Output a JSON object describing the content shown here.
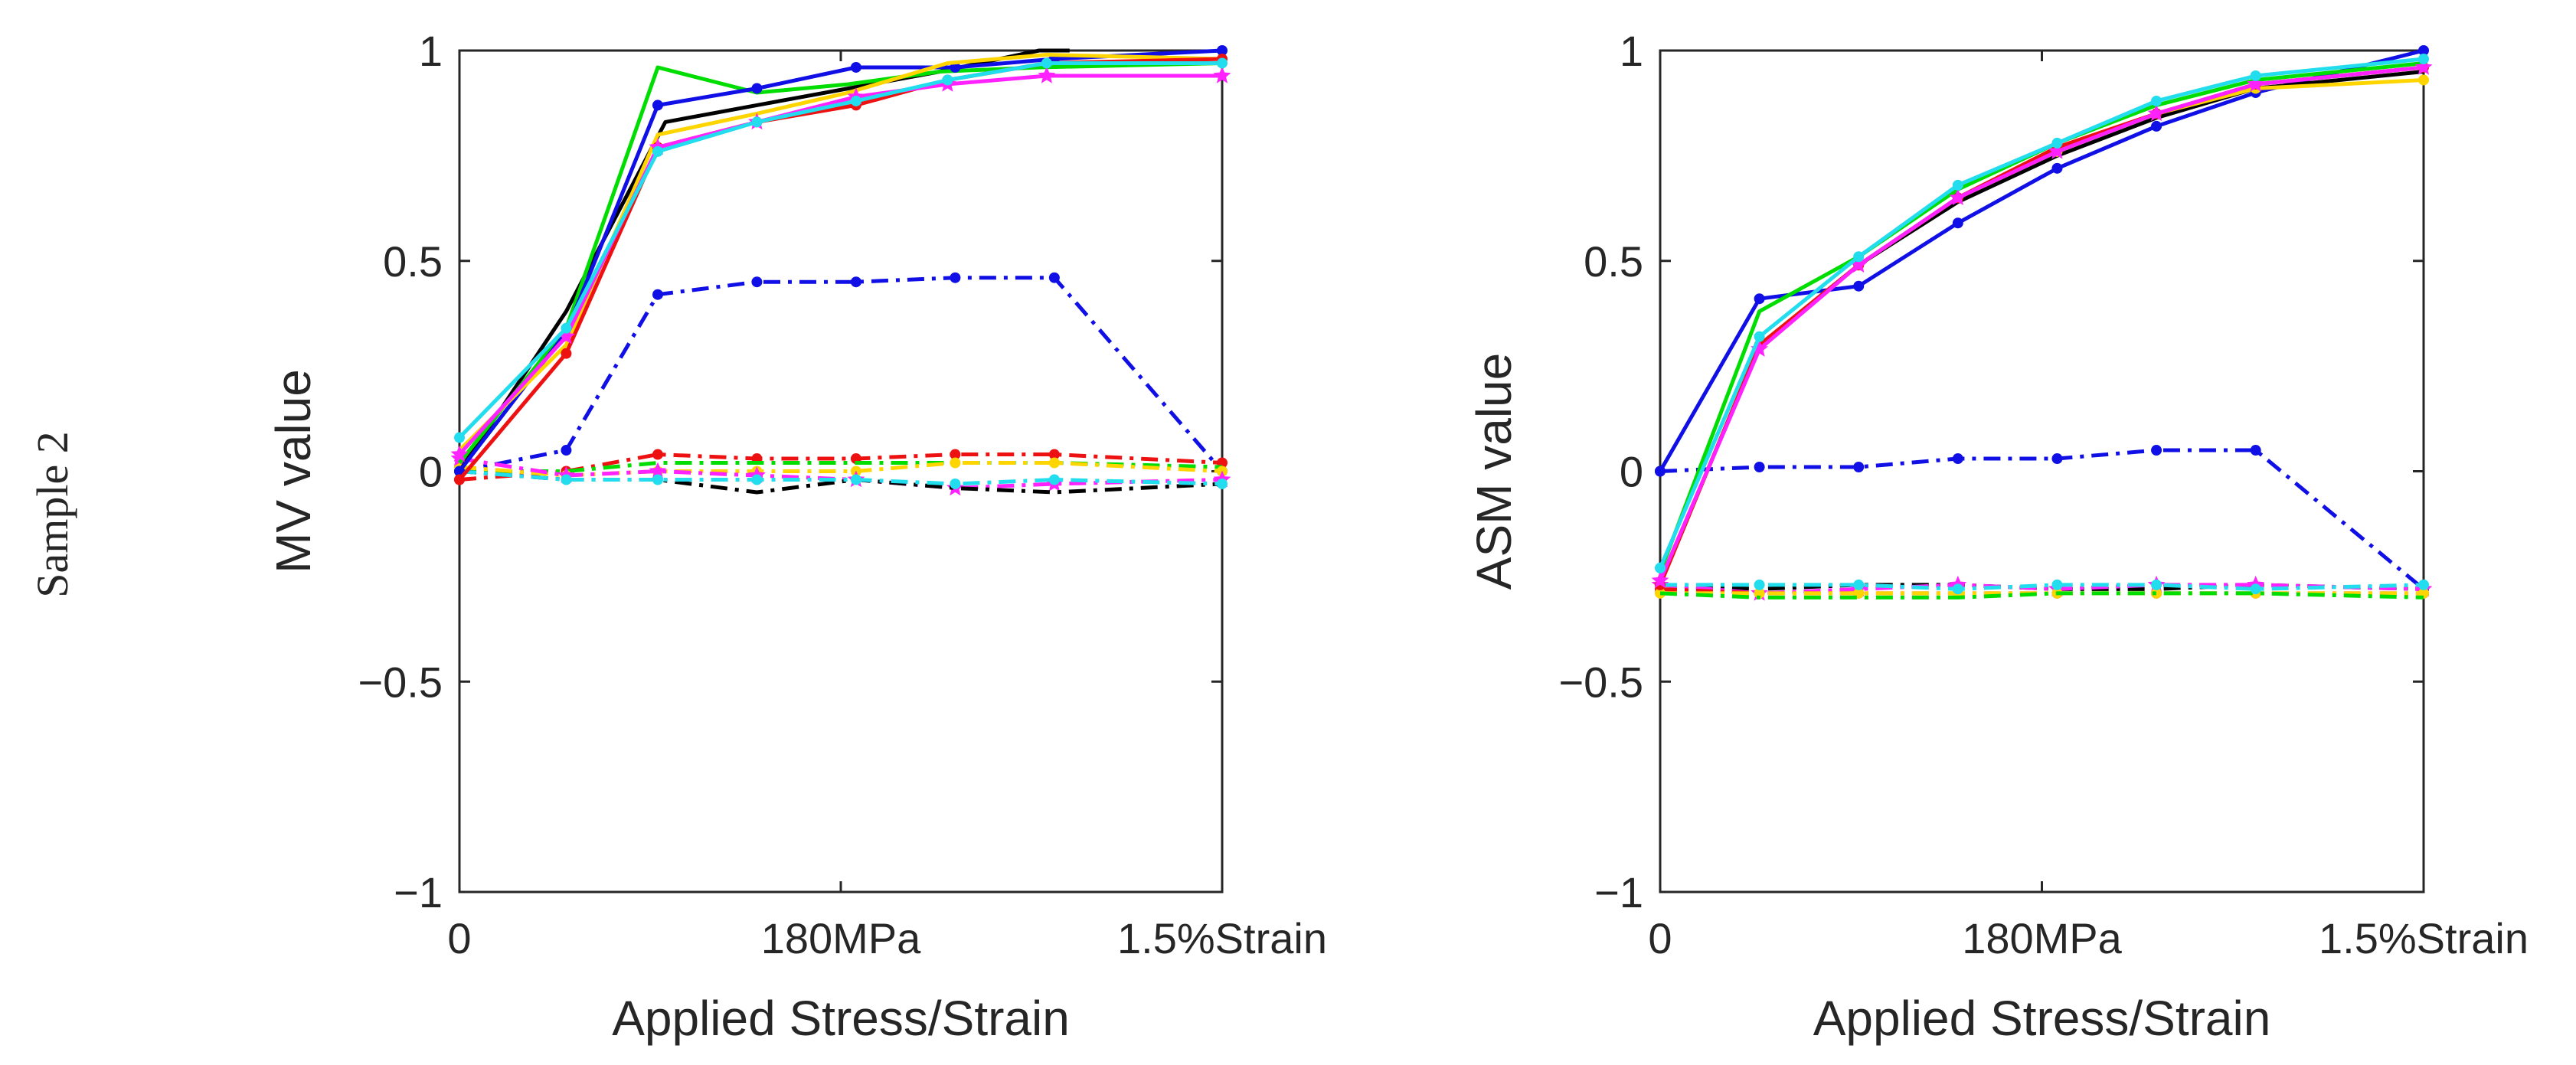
{
  "figure": {
    "row_label": "Sample 2"
  },
  "chart_data": [
    {
      "type": "line",
      "title": "",
      "xlabel": "Applied Stress/Strain",
      "ylabel": "MV value",
      "xlim": [
        0,
        10
      ],
      "ylim": [
        -1,
        1
      ],
      "xticks": [
        {
          "value": 0,
          "label": "0"
        },
        {
          "value": 5,
          "label": "180MPa"
        },
        {
          "value": 10,
          "label": "1.5%Strain"
        }
      ],
      "yticks": [
        {
          "value": -1,
          "label": "−1"
        },
        {
          "value": -0.5,
          "label": "−0.5"
        },
        {
          "value": 0,
          "label": "0"
        },
        {
          "value": 0.5,
          "label": "0.5"
        },
        {
          "value": 1,
          "label": "1"
        }
      ],
      "grid": false,
      "series": [
        {
          "name": "solid-black",
          "color": "#000000",
          "style": "solid",
          "marker": "none",
          "x": [
            0,
            1.4,
            2.7,
            3.9,
            5.1,
            6.3,
            7.6,
            8.0
          ],
          "values": [
            0.0,
            0.38,
            0.83,
            0.87,
            0.91,
            0.95,
            1.0,
            1.0
          ]
        },
        {
          "name": "solid-green",
          "color": "#00dd00",
          "style": "solid",
          "marker": "none",
          "x": [
            0,
            1.4,
            2.6,
            3.9,
            5.1,
            6.3,
            7.6,
            10
          ],
          "values": [
            0.02,
            0.34,
            0.96,
            0.9,
            0.92,
            0.95,
            0.96,
            0.97
          ]
        },
        {
          "name": "solid-blue",
          "color": "#1010e6",
          "style": "solid",
          "marker": "dot",
          "x": [
            0,
            1.4,
            2.6,
            3.9,
            5.2,
            6.5,
            7.8,
            10
          ],
          "values": [
            0.0,
            0.33,
            0.87,
            0.91,
            0.96,
            0.96,
            0.98,
            1.0
          ]
        },
        {
          "name": "solid-yellow",
          "color": "#ffd500",
          "style": "solid",
          "marker": "none",
          "x": [
            0,
            1.4,
            2.6,
            3.9,
            5.1,
            6.4,
            7.7,
            10
          ],
          "values": [
            0.05,
            0.3,
            0.8,
            0.85,
            0.9,
            0.97,
            0.99,
            0.98
          ]
        },
        {
          "name": "solid-red",
          "color": "#ee1111",
          "style": "solid",
          "marker": "dot",
          "x": [
            0,
            1.4,
            2.6,
            3.9,
            5.2,
            6.4,
            7.7,
            10
          ],
          "values": [
            -0.02,
            0.28,
            0.77,
            0.83,
            0.87,
            0.93,
            0.97,
            0.98
          ]
        },
        {
          "name": "solid-magenta",
          "color": "#ff22ff",
          "style": "solid",
          "marker": "star",
          "x": [
            0,
            1.4,
            2.6,
            3.9,
            5.2,
            6.4,
            7.7,
            10
          ],
          "values": [
            0.04,
            0.32,
            0.77,
            0.83,
            0.89,
            0.92,
            0.94,
            0.94
          ]
        },
        {
          "name": "solid-cyan",
          "color": "#22ddee",
          "style": "solid",
          "marker": "dot",
          "x": [
            0,
            1.4,
            2.6,
            3.9,
            5.2,
            6.4,
            7.7,
            10
          ],
          "values": [
            0.08,
            0.34,
            0.76,
            0.83,
            0.88,
            0.93,
            0.97,
            0.97
          ]
        },
        {
          "name": "dashdot-blue",
          "color": "#1010e6",
          "style": "dashdot",
          "marker": "dot",
          "x": [
            0,
            1.4,
            2.6,
            3.9,
            5.2,
            6.5,
            7.8,
            10
          ],
          "values": [
            0.0,
            0.05,
            0.42,
            0.45,
            0.45,
            0.46,
            0.46,
            0.0
          ]
        },
        {
          "name": "dashdot-red",
          "color": "#ee1111",
          "style": "dashdot",
          "marker": "dot",
          "x": [
            0,
            1.4,
            2.6,
            3.9,
            5.2,
            6.5,
            7.8,
            10
          ],
          "values": [
            -0.02,
            0.0,
            0.04,
            0.03,
            0.03,
            0.04,
            0.04,
            0.02
          ]
        },
        {
          "name": "dashdot-green",
          "color": "#00dd00",
          "style": "dashdot",
          "marker": "none",
          "x": [
            0,
            1.4,
            2.6,
            3.9,
            5.2,
            6.5,
            7.8,
            10
          ],
          "values": [
            0.0,
            0.0,
            0.02,
            0.02,
            0.02,
            0.02,
            0.02,
            0.01
          ]
        },
        {
          "name": "dashdot-yellow",
          "color": "#ffd500",
          "style": "dashdot",
          "marker": "dot",
          "x": [
            0,
            1.4,
            2.6,
            3.9,
            5.2,
            6.5,
            7.8,
            10
          ],
          "values": [
            0.01,
            -0.01,
            0.0,
            0.0,
            0.0,
            0.02,
            0.02,
            0.0
          ]
        },
        {
          "name": "dashdot-magenta",
          "color": "#ff22ff",
          "style": "dashdot",
          "marker": "star",
          "x": [
            0,
            1.4,
            2.6,
            3.9,
            5.2,
            6.5,
            7.8,
            10
          ],
          "values": [
            0.03,
            -0.01,
            0.0,
            -0.01,
            -0.02,
            -0.04,
            -0.03,
            -0.02
          ]
        },
        {
          "name": "dashdot-black",
          "color": "#000000",
          "style": "dashdot",
          "marker": "none",
          "x": [
            0,
            1.4,
            2.6,
            3.9,
            5.2,
            6.5,
            7.8,
            10
          ],
          "values": [
            0.0,
            -0.02,
            -0.02,
            -0.05,
            -0.02,
            -0.04,
            -0.05,
            -0.03
          ]
        },
        {
          "name": "dashdot-cyan",
          "color": "#22ddee",
          "style": "dashdot",
          "marker": "dot",
          "x": [
            0,
            1.4,
            2.6,
            3.9,
            5.2,
            6.5,
            7.8,
            10
          ],
          "values": [
            0.0,
            -0.02,
            -0.02,
            -0.02,
            -0.02,
            -0.03,
            -0.02,
            -0.03
          ]
        }
      ]
    },
    {
      "type": "line",
      "title": "",
      "xlabel": "Applied Stress/Strain",
      "ylabel": "ASM value",
      "xlim": [
        0,
        10
      ],
      "ylim": [
        -1,
        1
      ],
      "xticks": [
        {
          "value": 0,
          "label": "0"
        },
        {
          "value": 5,
          "label": "180MPa"
        },
        {
          "value": 10,
          "label": "1.5%Strain"
        }
      ],
      "yticks": [
        {
          "value": -1,
          "label": "−1"
        },
        {
          "value": -0.5,
          "label": "−0.5"
        },
        {
          "value": 0,
          "label": "0"
        },
        {
          "value": 0.5,
          "label": "0.5"
        },
        {
          "value": 1,
          "label": "1"
        }
      ],
      "grid": false,
      "series": [
        {
          "name": "solid-blue",
          "color": "#1010e6",
          "style": "solid",
          "marker": "dot",
          "x": [
            0,
            1.3,
            2.6,
            3.9,
            5.2,
            6.5,
            7.8,
            10
          ],
          "values": [
            0.0,
            0.41,
            0.44,
            0.59,
            0.72,
            0.82,
            0.9,
            1.0
          ]
        },
        {
          "name": "solid-black",
          "color": "#000000",
          "style": "solid",
          "marker": "none",
          "x": [
            0,
            1.3,
            2.6,
            3.9,
            5.2,
            6.5,
            7.8,
            10
          ],
          "values": [
            -0.27,
            0.3,
            0.49,
            0.64,
            0.75,
            0.84,
            0.91,
            0.95
          ]
        },
        {
          "name": "solid-yellow",
          "color": "#ffd500",
          "style": "solid",
          "marker": "dot",
          "x": [
            0,
            1.3,
            2.6,
            3.9,
            5.2,
            6.5,
            7.8,
            10
          ],
          "values": [
            -0.27,
            0.3,
            0.49,
            0.65,
            0.76,
            0.85,
            0.91,
            0.93
          ]
        },
        {
          "name": "solid-red",
          "color": "#ee1111",
          "style": "solid",
          "marker": "dot",
          "x": [
            0,
            1.3,
            2.6,
            3.9,
            5.2,
            6.5,
            7.8,
            10
          ],
          "values": [
            -0.27,
            0.3,
            0.49,
            0.65,
            0.77,
            0.85,
            0.92,
            0.96
          ]
        },
        {
          "name": "solid-green",
          "color": "#00dd00",
          "style": "solid",
          "marker": "none",
          "x": [
            0,
            1.3,
            2.6,
            3.9,
            5.2,
            6.5,
            7.8,
            10
          ],
          "values": [
            -0.24,
            0.38,
            0.51,
            0.67,
            0.78,
            0.87,
            0.93,
            0.97
          ]
        },
        {
          "name": "solid-magenta",
          "color": "#ff22ff",
          "style": "solid",
          "marker": "star",
          "x": [
            0,
            1.3,
            2.6,
            3.9,
            5.2,
            6.5,
            7.8,
            10
          ],
          "values": [
            -0.26,
            0.29,
            0.49,
            0.65,
            0.76,
            0.85,
            0.92,
            0.96
          ]
        },
        {
          "name": "solid-cyan",
          "color": "#22ddee",
          "style": "solid",
          "marker": "dot",
          "x": [
            0,
            1.3,
            2.6,
            3.9,
            5.2,
            6.5,
            7.8,
            10
          ],
          "values": [
            -0.23,
            0.32,
            0.51,
            0.68,
            0.78,
            0.88,
            0.94,
            0.98
          ]
        },
        {
          "name": "dashdot-blue",
          "color": "#1010e6",
          "style": "dashdot",
          "marker": "dot",
          "x": [
            0,
            1.3,
            2.6,
            3.9,
            5.2,
            6.5,
            7.8,
            10
          ],
          "values": [
            0.0,
            0.01,
            0.01,
            0.03,
            0.03,
            0.05,
            0.05,
            -0.28
          ]
        },
        {
          "name": "dashdot-black",
          "color": "#000000",
          "style": "dashdot",
          "marker": "none",
          "x": [
            0,
            1.3,
            2.6,
            3.9,
            5.2,
            6.5,
            7.8,
            10
          ],
          "values": [
            -0.27,
            -0.28,
            -0.27,
            -0.27,
            -0.28,
            -0.28,
            -0.27,
            -0.28
          ]
        },
        {
          "name": "dashdot-magenta",
          "color": "#ff22ff",
          "style": "dashdot",
          "marker": "star",
          "x": [
            0,
            1.3,
            2.6,
            3.9,
            5.2,
            6.5,
            7.8,
            10
          ],
          "values": [
            -0.27,
            -0.29,
            -0.28,
            -0.27,
            -0.28,
            -0.27,
            -0.27,
            -0.28
          ]
        },
        {
          "name": "dashdot-red",
          "color": "#ee1111",
          "style": "dashdot",
          "marker": "dot",
          "x": [
            0,
            1.3,
            2.6,
            3.9,
            5.2,
            6.5,
            7.8,
            10
          ],
          "values": [
            -0.28,
            -0.29,
            -0.29,
            -0.29,
            -0.29,
            -0.29,
            -0.29,
            -0.29
          ]
        },
        {
          "name": "dashdot-yellow",
          "color": "#ffd500",
          "style": "dashdot",
          "marker": "dot",
          "x": [
            0,
            1.3,
            2.6,
            3.9,
            5.2,
            6.5,
            7.8,
            10
          ],
          "values": [
            -0.29,
            -0.29,
            -0.29,
            -0.29,
            -0.29,
            -0.29,
            -0.29,
            -0.29
          ]
        },
        {
          "name": "dashdot-green",
          "color": "#00dd00",
          "style": "dashdot",
          "marker": "none",
          "x": [
            0,
            1.3,
            2.6,
            3.9,
            5.2,
            6.5,
            7.8,
            10
          ],
          "values": [
            -0.29,
            -0.3,
            -0.3,
            -0.3,
            -0.29,
            -0.29,
            -0.29,
            -0.3
          ]
        },
        {
          "name": "dashdot-cyan",
          "color": "#22ddee",
          "style": "dashdot",
          "marker": "dot",
          "x": [
            0,
            1.3,
            2.6,
            3.9,
            5.2,
            6.5,
            7.8,
            10
          ],
          "values": [
            -0.27,
            -0.27,
            -0.27,
            -0.28,
            -0.27,
            -0.27,
            -0.28,
            -0.27
          ]
        }
      ]
    }
  ]
}
